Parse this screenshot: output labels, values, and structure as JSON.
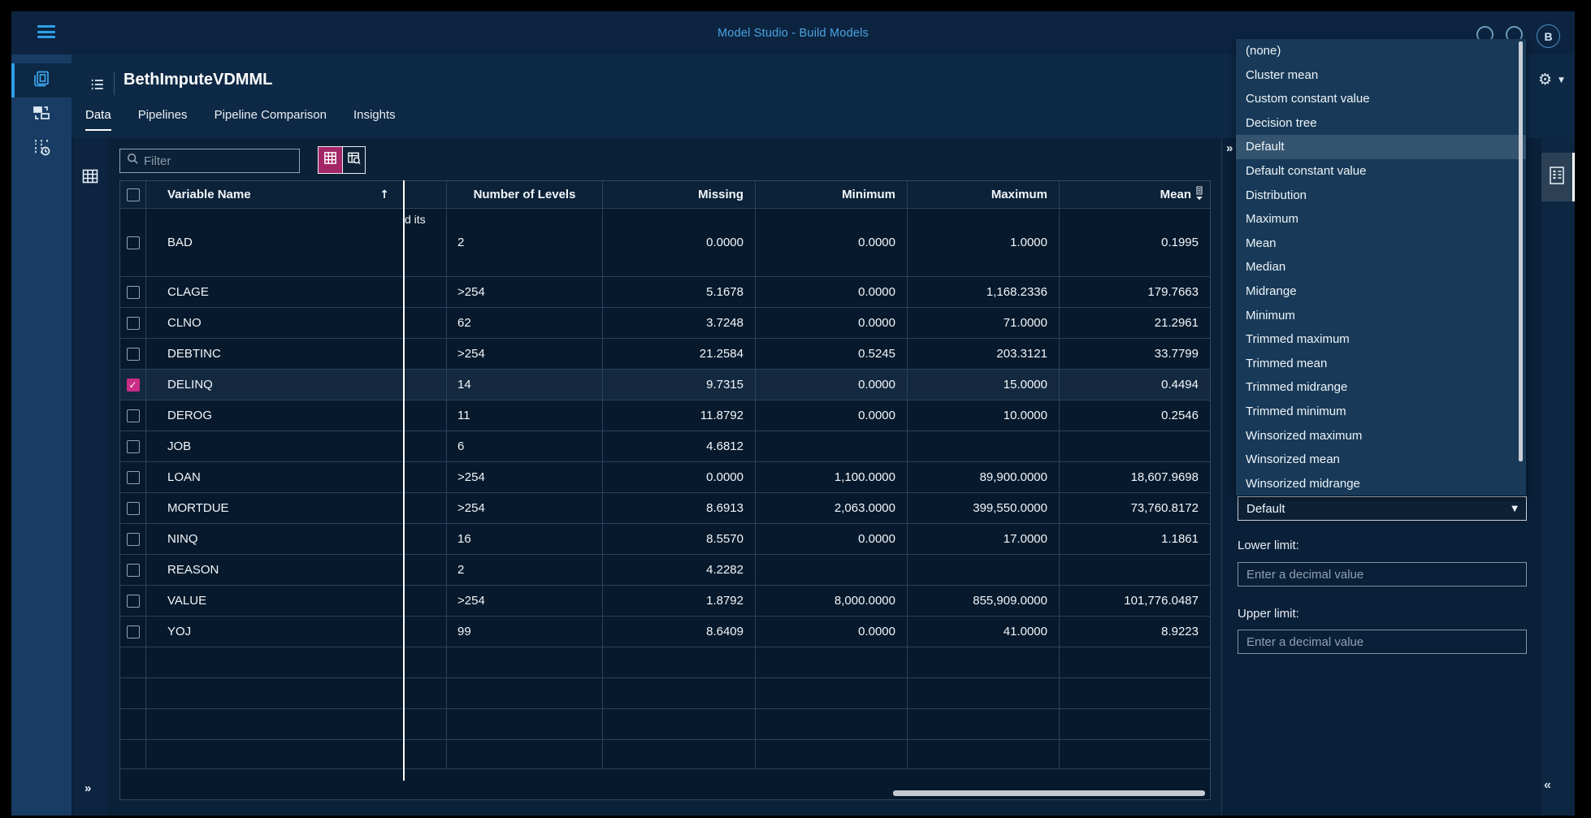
{
  "app": {
    "topbar_title": "Model Studio - Build Models",
    "avatar_initial": "B"
  },
  "project": {
    "title": "BethImputeVDMML"
  },
  "tabs": {
    "items": [
      "Data",
      "Pipelines",
      "Pipeline Comparison",
      "Insights"
    ],
    "active": "Data"
  },
  "toolbar": {
    "filter_placeholder": "Filter"
  },
  "table": {
    "columns": [
      "Variable Name",
      "Number of Levels",
      "Missing",
      "Minimum",
      "Maximum",
      "Mean"
    ],
    "sort_arrow": "↑",
    "rows": [
      {
        "name": "BAD",
        "checked": false,
        "tall": true,
        "clipped_text": "d its",
        "levels": "2",
        "missing": "0.0000",
        "minimum": "0.0000",
        "maximum": "1.0000",
        "mean": "0.1995"
      },
      {
        "name": "CLAGE",
        "checked": false,
        "levels": ">254",
        "missing": "5.1678",
        "minimum": "0.0000",
        "maximum": "1,168.2336",
        "mean": "179.7663"
      },
      {
        "name": "CLNO",
        "checked": false,
        "levels": "62",
        "missing": "3.7248",
        "minimum": "0.0000",
        "maximum": "71.0000",
        "mean": "21.2961"
      },
      {
        "name": "DEBTINC",
        "checked": false,
        "levels": ">254",
        "missing": "21.2584",
        "minimum": "0.5245",
        "maximum": "203.3121",
        "mean": "33.7799"
      },
      {
        "name": "DELINQ",
        "checked": true,
        "selected": true,
        "levels": "14",
        "missing": "9.7315",
        "minimum": "0.0000",
        "maximum": "15.0000",
        "mean": "0.4494"
      },
      {
        "name": "DEROG",
        "checked": false,
        "levels": "11",
        "missing": "11.8792",
        "minimum": "0.0000",
        "maximum": "10.0000",
        "mean": "0.2546"
      },
      {
        "name": "JOB",
        "checked": false,
        "levels": "6",
        "missing": "4.6812",
        "minimum": "",
        "maximum": "",
        "mean": ""
      },
      {
        "name": "LOAN",
        "checked": false,
        "levels": ">254",
        "missing": "0.0000",
        "minimum": "1,100.0000",
        "maximum": "89,900.0000",
        "mean": "18,607.9698"
      },
      {
        "name": "MORTDUE",
        "checked": false,
        "levels": ">254",
        "missing": "8.6913",
        "minimum": "2,063.0000",
        "maximum": "399,550.0000",
        "mean": "73,760.8172"
      },
      {
        "name": "NINQ",
        "checked": false,
        "levels": "16",
        "missing": "8.5570",
        "minimum": "0.0000",
        "maximum": "17.0000",
        "mean": "1.1861"
      },
      {
        "name": "REASON",
        "checked": false,
        "levels": "2",
        "missing": "4.2282",
        "minimum": "",
        "maximum": "",
        "mean": ""
      },
      {
        "name": "VALUE",
        "checked": false,
        "levels": ">254",
        "missing": "1.8792",
        "minimum": "8,000.0000",
        "maximum": "855,909.0000",
        "mean": "101,776.0487"
      },
      {
        "name": "YOJ",
        "checked": false,
        "levels": "99",
        "missing": "8.6409",
        "minimum": "0.0000",
        "maximum": "41.0000",
        "mean": "8.9223"
      }
    ],
    "empty_row_count": 4
  },
  "method_dropdown": {
    "items": [
      "(none)",
      "Cluster mean",
      "Custom constant value",
      "Decision tree",
      "Default",
      "Default constant value",
      "Distribution",
      "Maximum",
      "Mean",
      "Median",
      "Midrange",
      "Minimum",
      "Trimmed maximum",
      "Trimmed mean",
      "Trimmed midrange",
      "Trimmed minimum",
      "Winsorized maximum",
      "Winsorized mean",
      "Winsorized midrange"
    ],
    "highlighted": "Default"
  },
  "right_panel": {
    "combobox_value": "Default",
    "lower_limit_label": "Lower limit:",
    "upper_limit_label": "Upper limit:",
    "limit_placeholder": "Enter a decimal value",
    "collapse_chevron": "»",
    "collapse_chevron_left": "«"
  },
  "chevrons": {
    "expand": "»"
  },
  "colors": {
    "accent_blue": "#2f9fe8",
    "magenta_selected": "#a42668",
    "checkbox_checked": "#ca2d85",
    "link_blue": "#4aa3e0"
  }
}
